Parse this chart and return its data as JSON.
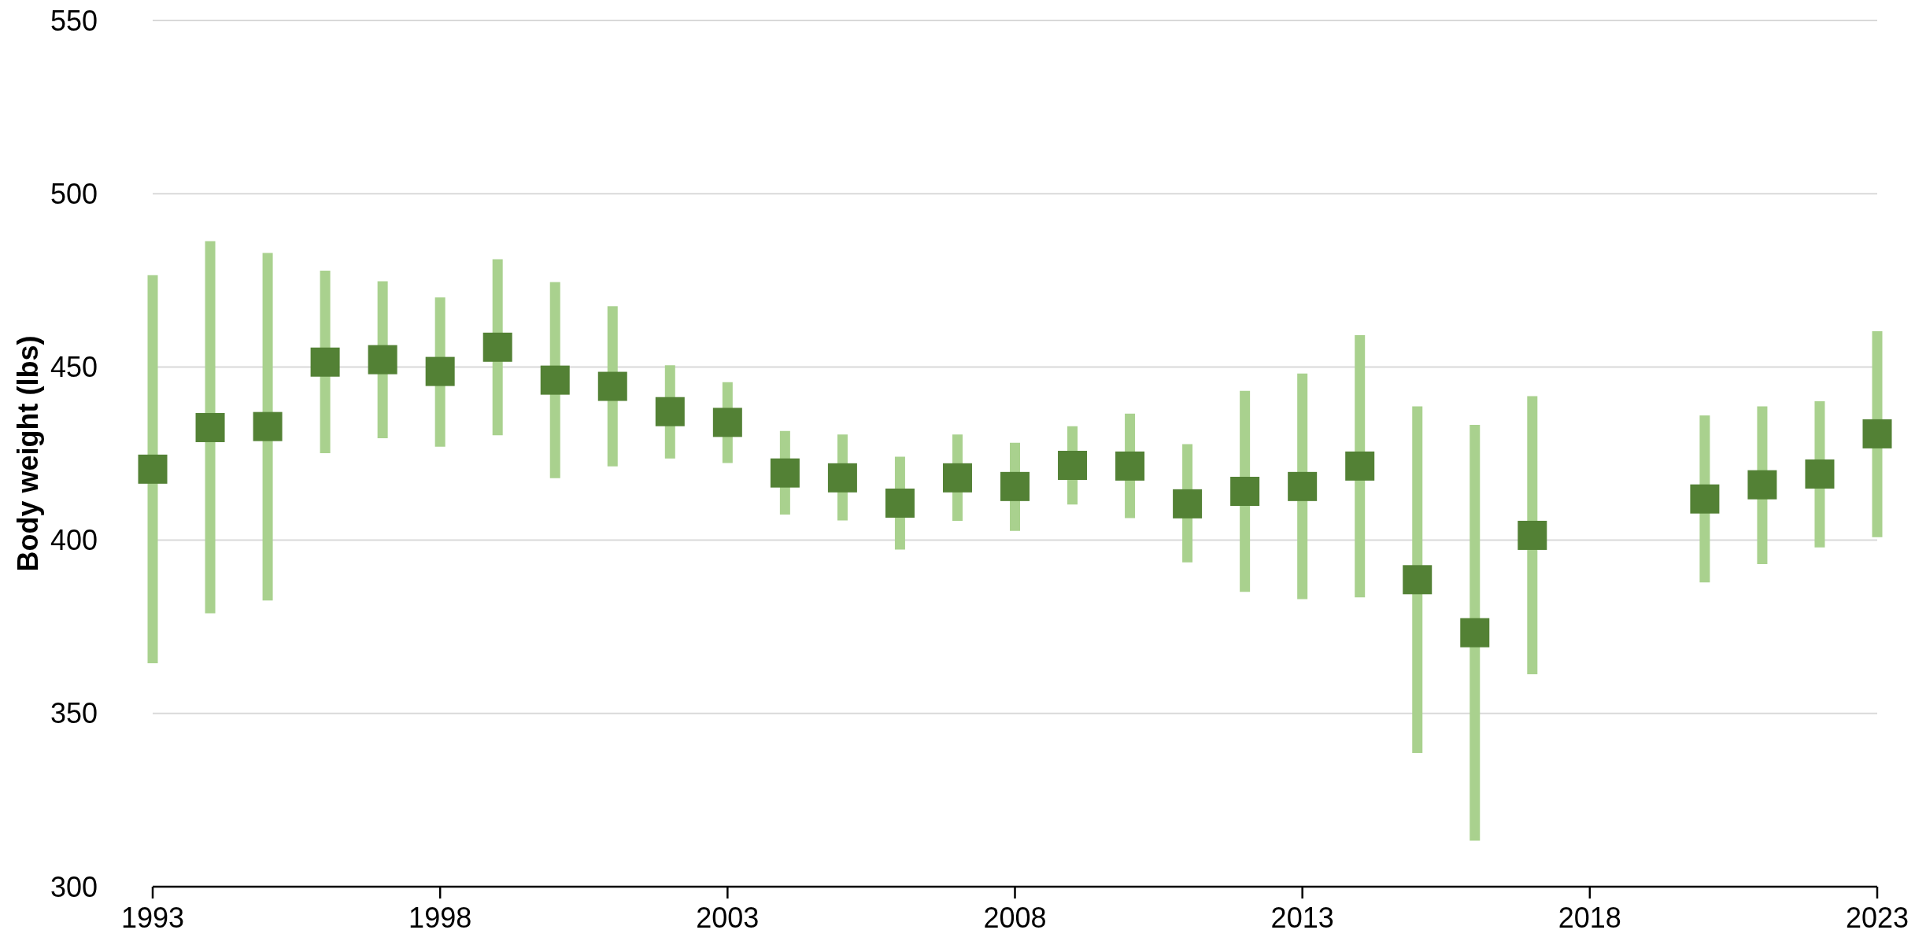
{
  "chart_data": {
    "type": "scatter",
    "ylabel": "Body weight (lbs)",
    "x": [
      1993,
      1994,
      1995,
      1996,
      1997,
      1998,
      1999,
      2000,
      2001,
      2002,
      2003,
      2004,
      2005,
      2006,
      2007,
      2008,
      2009,
      2010,
      2011,
      2012,
      2013,
      2014,
      2015,
      2016,
      2017,
      2018,
      2019,
      2020,
      2021,
      2022,
      2023
    ],
    "series": [
      {
        "color": "#538135",
        "values": [
          420.5,
          432.5,
          432.8,
          451.4,
          452.1,
          448.7,
          455.7,
          446.2,
          444.4,
          437.1,
          434,
          419.4,
          418,
          410.7,
          418,
          415.5,
          421.6,
          421.4,
          410.5,
          414.1,
          415.5,
          421.4,
          388.6,
          373.3,
          401.4,
          null,
          null,
          411.9,
          416,
          419.1,
          430.7
        ],
        "errors": [
          [
            364.5,
            476.5
          ],
          [
            378.9,
            486.3
          ],
          [
            382.6,
            482.9
          ],
          [
            425.1,
            477.8
          ],
          [
            429.4,
            474.7
          ],
          [
            427,
            470.1
          ],
          [
            430.3,
            481.1
          ],
          [
            417.9,
            474.5
          ],
          [
            421.3,
            467.5
          ],
          [
            423.6,
            450.5
          ],
          [
            422.3,
            445.6
          ],
          [
            407.4,
            431.5
          ],
          [
            405.7,
            430.5
          ],
          [
            397.3,
            424.1
          ],
          [
            405.6,
            430.5
          ],
          [
            402.7,
            428.1
          ],
          [
            410.3,
            432.9
          ],
          [
            406.4,
            436.5
          ],
          [
            393.6,
            427.7
          ],
          [
            385.1,
            443.1
          ],
          [
            383,
            448.1
          ],
          [
            383.5,
            459.2
          ],
          [
            338.6,
            438.6
          ],
          [
            313.3,
            433.3
          ],
          [
            361.3,
            441.6
          ],
          null,
          null,
          [
            387.8,
            436
          ],
          [
            393.1,
            438.6
          ],
          [
            397.9,
            440.1
          ],
          [
            400.9,
            460.3
          ]
        ]
      }
    ],
    "xlim": [
      1993,
      2023
    ],
    "xticks": [
      1993,
      1998,
      2003,
      2008,
      2013,
      2018,
      2023
    ],
    "ylim": [
      300,
      550
    ],
    "yticks": [
      300,
      350,
      400,
      450,
      500,
      550
    ],
    "grid": "y",
    "marker": "square"
  }
}
